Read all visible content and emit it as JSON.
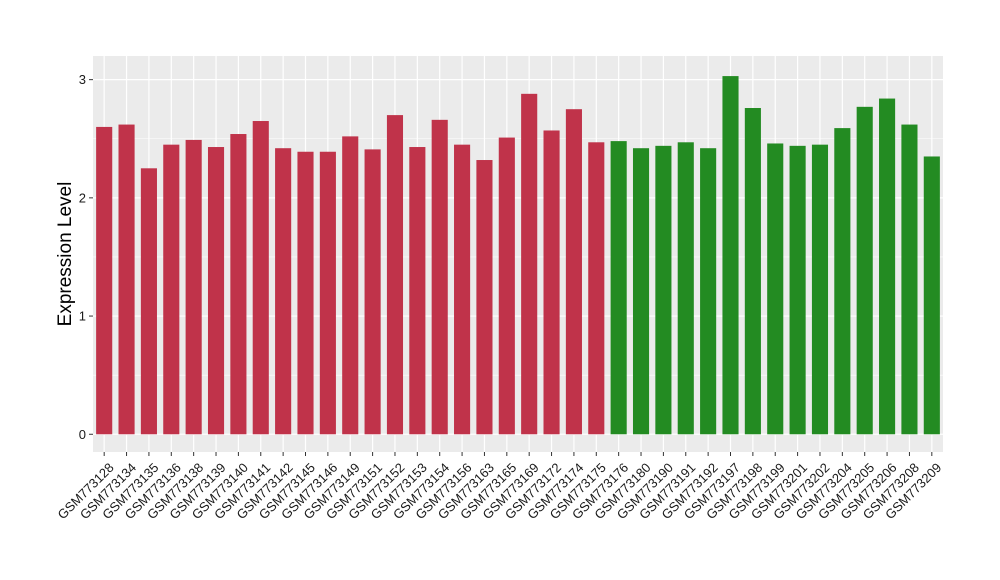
{
  "chart_data": {
    "type": "bar",
    "title": "",
    "xlabel": "",
    "ylabel": "Expression Level",
    "ylim": [
      -0.15,
      3.2
    ],
    "yticks": [
      0,
      1,
      2,
      3
    ],
    "grid": true,
    "legend": "none",
    "categories": [
      "GSM773128",
      "GSM773134",
      "GSM773135",
      "GSM773136",
      "GSM773138",
      "GSM773139",
      "GSM773140",
      "GSM773141",
      "GSM773142",
      "GSM773145",
      "GSM773146",
      "GSM773149",
      "GSM773151",
      "GSM773152",
      "GSM773153",
      "GSM773154",
      "GSM773156",
      "GSM773163",
      "GSM773165",
      "GSM773169",
      "GSM773172",
      "GSM773174",
      "GSM773175",
      "GSM773176",
      "GSM773180",
      "GSM773190",
      "GSM773191",
      "GSM773192",
      "GSM773197",
      "GSM773198",
      "GSM773199",
      "GSM773201",
      "GSM773202",
      "GSM773204",
      "GSM773205",
      "GSM773206",
      "GSM773208",
      "GSM773209"
    ],
    "values": [
      2.6,
      2.62,
      2.25,
      2.45,
      2.49,
      2.43,
      2.54,
      2.65,
      2.42,
      2.39,
      2.39,
      2.52,
      2.41,
      2.7,
      2.43,
      2.66,
      2.45,
      2.32,
      2.51,
      2.88,
      2.57,
      2.75,
      2.47,
      2.48,
      2.42,
      2.44,
      2.47,
      2.42,
      3.03,
      2.76,
      2.46,
      2.44,
      2.45,
      2.59,
      2.77,
      2.84,
      2.62,
      2.35
    ],
    "group_colors": [
      "#c0334a",
      "#c0334a",
      "#c0334a",
      "#c0334a",
      "#c0334a",
      "#c0334a",
      "#c0334a",
      "#c0334a",
      "#c0334a",
      "#c0334a",
      "#c0334a",
      "#c0334a",
      "#c0334a",
      "#c0334a",
      "#c0334a",
      "#c0334a",
      "#c0334a",
      "#c0334a",
      "#c0334a",
      "#c0334a",
      "#c0334a",
      "#c0334a",
      "#c0334a",
      "#238b22",
      "#238b22",
      "#238b22",
      "#238b22",
      "#238b22",
      "#238b22",
      "#238b22",
      "#238b22",
      "#238b22",
      "#238b22",
      "#238b22",
      "#238b22",
      "#238b22",
      "#238b22",
      "#238b22"
    ],
    "colors": {
      "panel": "#ebebeb",
      "grid": "#ffffff",
      "text": "#1a1a1a"
    }
  }
}
